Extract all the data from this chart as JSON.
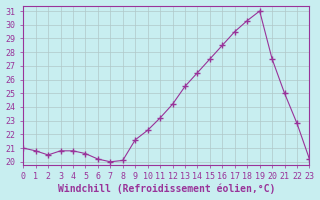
{
  "x": [
    0,
    1,
    2,
    3,
    4,
    5,
    6,
    7,
    8,
    9,
    10,
    11,
    12,
    13,
    14,
    15,
    16,
    17,
    18,
    19,
    20,
    21,
    22,
    23
  ],
  "y": [
    21.0,
    20.8,
    20.5,
    20.8,
    20.8,
    20.6,
    20.2,
    20.0,
    20.1,
    21.6,
    22.3,
    23.2,
    24.2,
    25.5,
    26.5,
    27.5,
    28.5,
    29.5,
    30.3,
    31.0,
    27.5,
    25.0,
    22.8,
    20.2
  ],
  "xlabel": "Windchill (Refroidissement éolien,°C)",
  "xlim": [
    0,
    23
  ],
  "ylim": [
    19.8,
    31.4
  ],
  "yticks": [
    20,
    21,
    22,
    23,
    24,
    25,
    26,
    27,
    28,
    29,
    30,
    31
  ],
  "xticks": [
    0,
    1,
    2,
    3,
    4,
    5,
    6,
    7,
    8,
    9,
    10,
    11,
    12,
    13,
    14,
    15,
    16,
    17,
    18,
    19,
    20,
    21,
    22,
    23
  ],
  "line_color": "#993399",
  "marker": "+",
  "marker_size": 4,
  "bg_color": "#c8eef0",
  "grid_color": "#b0c8c8",
  "font_color": "#993399",
  "tick_fontsize": 6.0,
  "xlabel_fontsize": 7.0
}
